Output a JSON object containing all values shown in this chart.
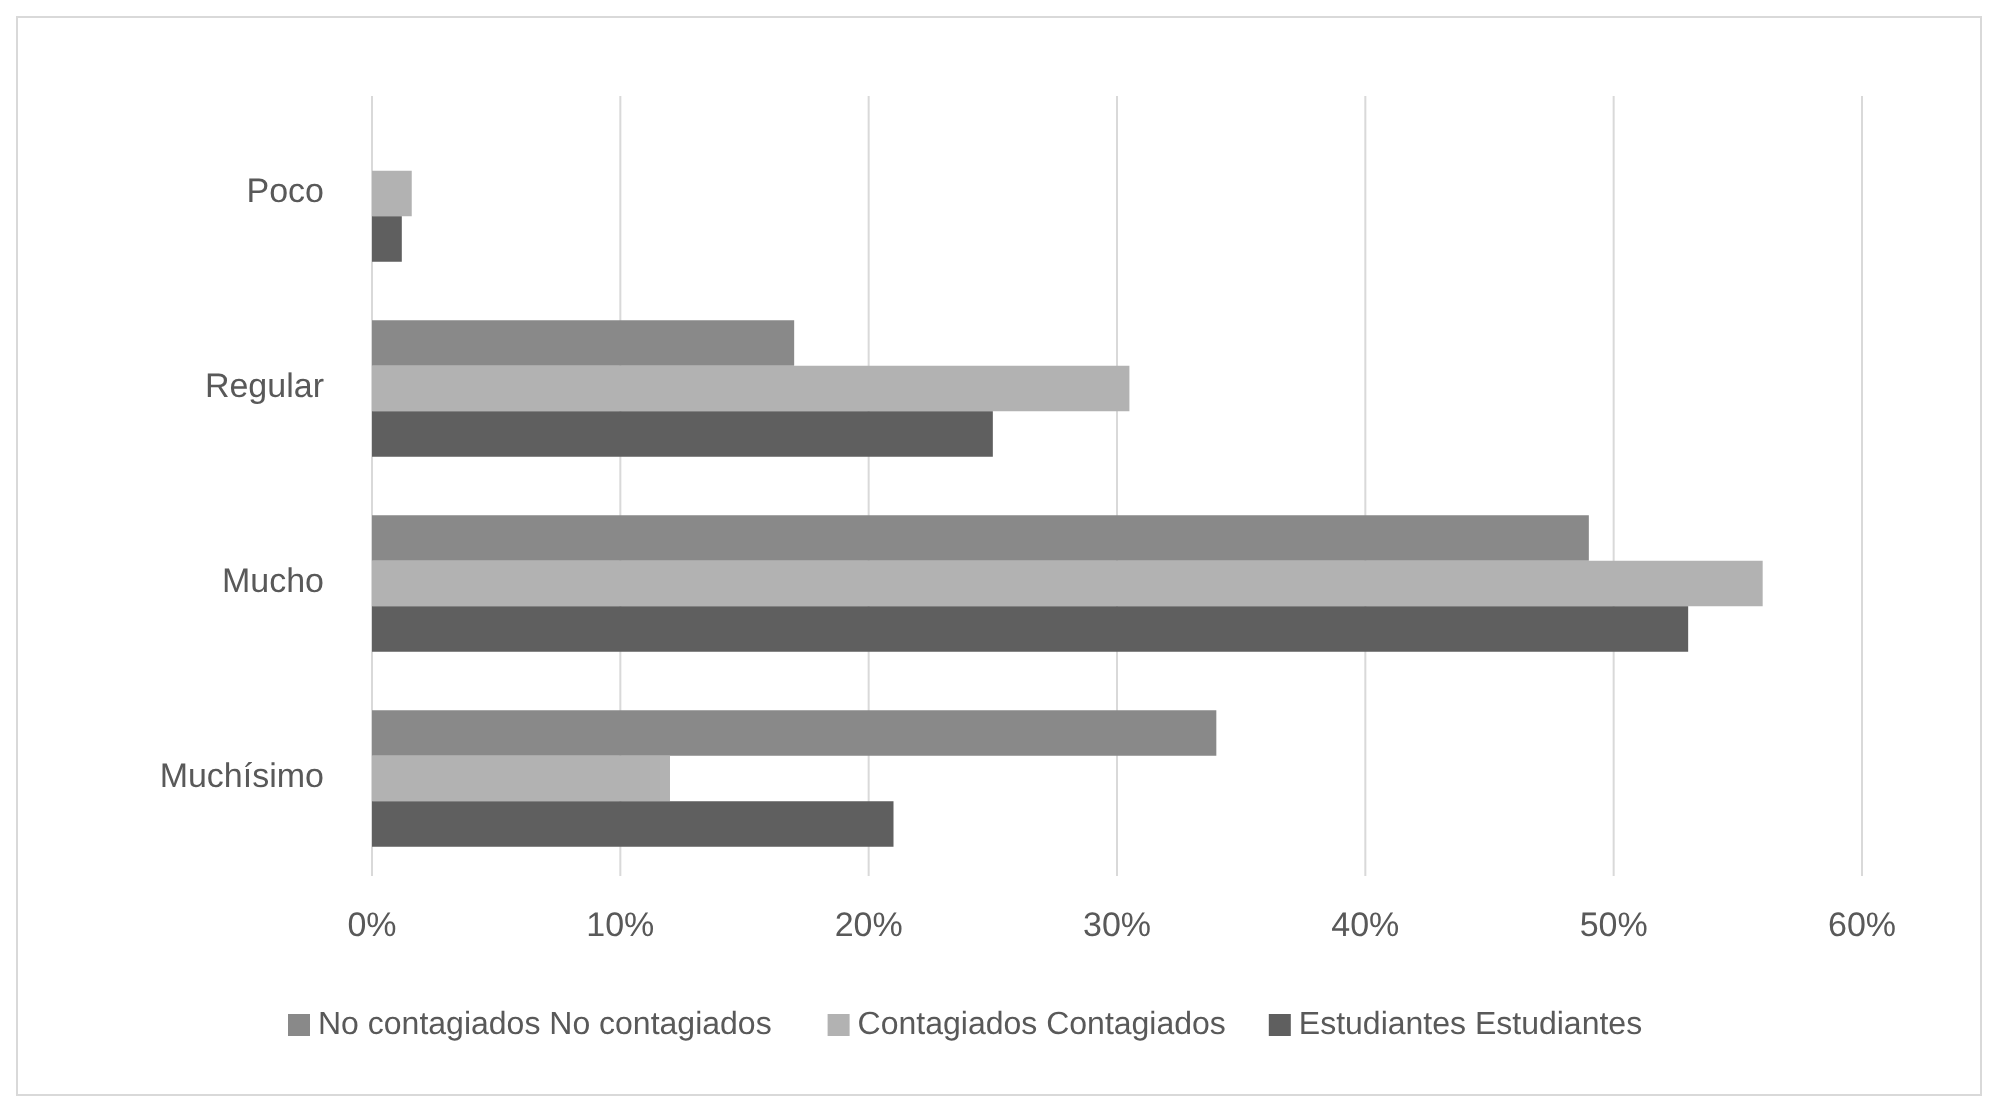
{
  "chart_data": {
    "type": "bar",
    "orientation": "horizontal",
    "categories": [
      "Poco",
      "Regular",
      "Mucho",
      "Muchísimo"
    ],
    "series": [
      {
        "name": "No contagiados No contagiados",
        "color": "#898989",
        "values": [
          0,
          17,
          49,
          34
        ]
      },
      {
        "name": "Contagiados Contagiados",
        "color": "#b2b2b2",
        "values": [
          1.6,
          30.5,
          56,
          12
        ]
      },
      {
        "name": "Estudiantes Estudiantes",
        "color": "#5f5f5f",
        "values": [
          1.2,
          25,
          53,
          21
        ]
      }
    ],
    "xlim": [
      0,
      60
    ],
    "xticks": [
      {
        "value": 0,
        "label": "0%"
      },
      {
        "value": 10,
        "label": "10%"
      },
      {
        "value": 20,
        "label": "20%"
      },
      {
        "value": 30,
        "label": "30%"
      },
      {
        "value": 40,
        "label": "40%"
      },
      {
        "value": 50,
        "label": "50%"
      },
      {
        "value": 60,
        "label": "60%"
      }
    ],
    "grid": "x",
    "legend": "bottom"
  }
}
